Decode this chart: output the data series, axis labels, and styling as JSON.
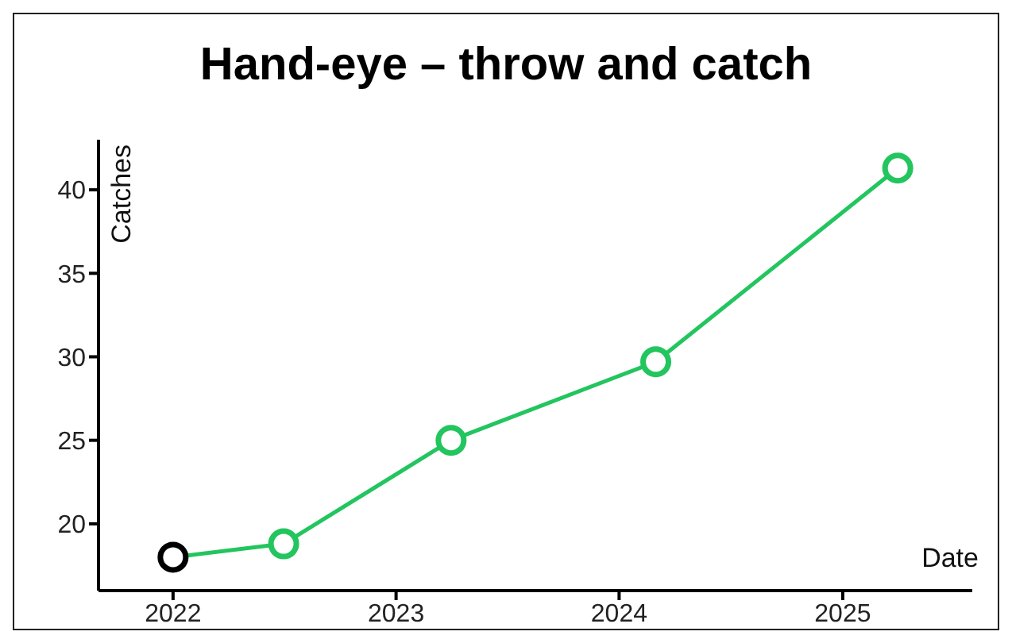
{
  "chart_data": {
    "type": "line",
    "title": "Hand-eye – throw and catch",
    "xlabel": "Date",
    "ylabel": "Catches",
    "x": [
      "2022-01",
      "2022-07",
      "2023-04",
      "2024-03",
      "2025-04"
    ],
    "series": [
      {
        "color": "#22c55e",
        "colors": [
          "#000000",
          "#22c55e",
          "#22c55e",
          "#22c55e",
          "#22c55e"
        ],
        "values": [
          18,
          18.8,
          25,
          29.7,
          41.3
        ]
      }
    ],
    "xlim": [
      "2021-09",
      "2025-08"
    ],
    "xticks": [
      "2022",
      "2023",
      "2024",
      "2025"
    ],
    "ylim": [
      16,
      43
    ],
    "yticks": [
      20,
      25,
      30,
      35,
      40
    ],
    "marker": "circle",
    "line_style": "solid",
    "grid": false,
    "legend": false
  }
}
